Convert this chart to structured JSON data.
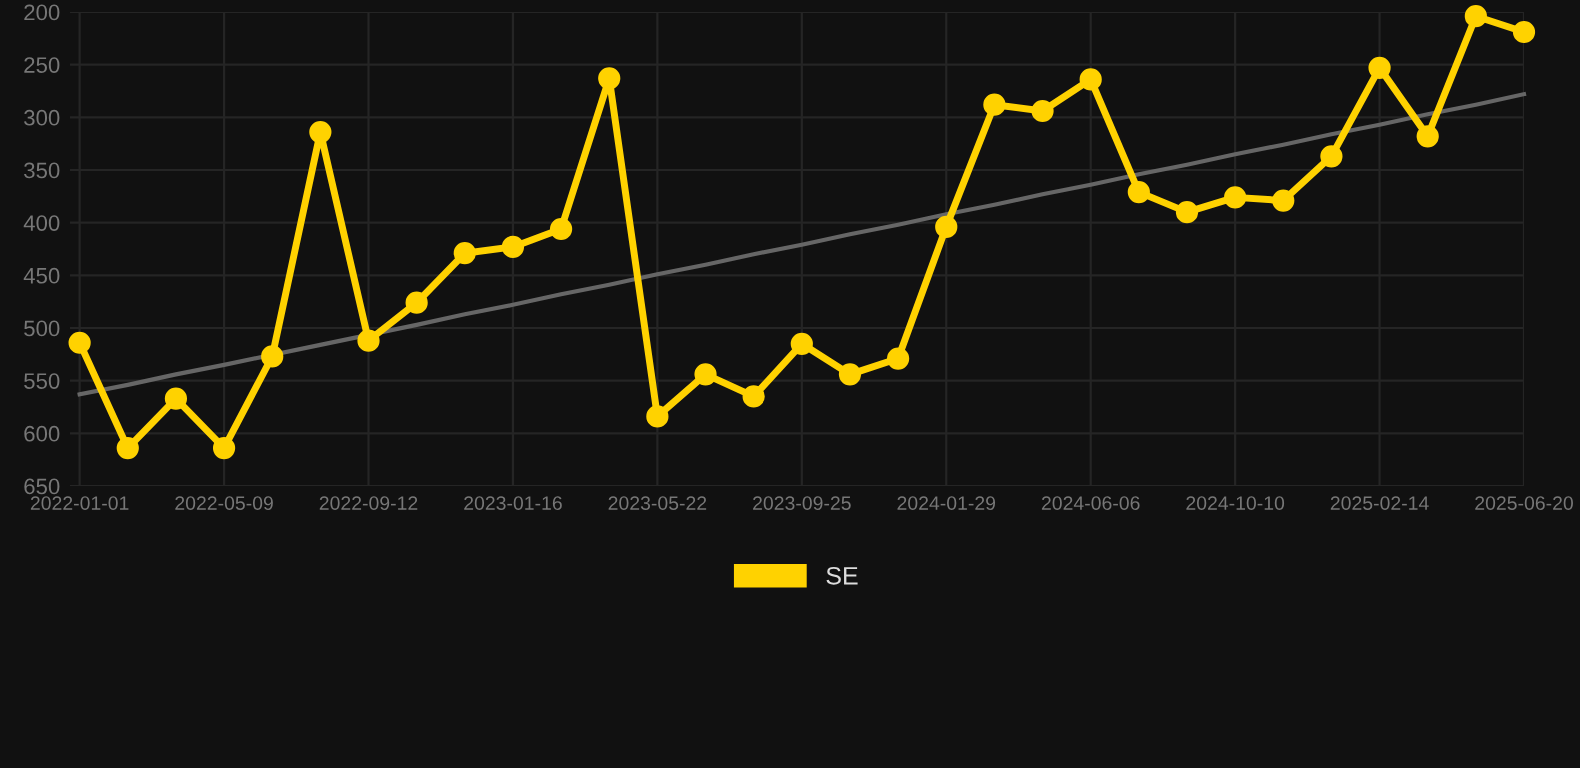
{
  "chart_data": {
    "type": "line",
    "categories": [
      "2022-01-01",
      null,
      null,
      "2022-05-09",
      null,
      null,
      "2022-09-12",
      null,
      null,
      "2023-01-16",
      null,
      null,
      "2023-05-22",
      null,
      null,
      "2023-09-25",
      null,
      null,
      "2024-01-29",
      null,
      null,
      "2024-06-06",
      null,
      null,
      "2024-10-10",
      null,
      null,
      "2025-02-14",
      null,
      null,
      "2025-06-20"
    ],
    "series": [
      {
        "name": "SE",
        "color": "#ffd200",
        "marker": "circle",
        "values": [
          514,
          614,
          567,
          614,
          527,
          314,
          512,
          476,
          429,
          423,
          406,
          263,
          584,
          544,
          565,
          515,
          544,
          529,
          404,
          288,
          294,
          264,
          371,
          390,
          376,
          379,
          337,
          253,
          318,
          204,
          219
        ]
      },
      {
        "color": "#666666",
        "marker": "none",
        "values": [
          563,
          554,
          544,
          535,
          null,
          516,
          null,
          497,
          487,
          478,
          468,
          459,
          449,
          440,
          430,
          421,
          411,
          402,
          392,
          383,
          373,
          364,
          354,
          345,
          335,
          326,
          316,
          307,
          297,
          288,
          278
        ]
      }
    ],
    "ylim": [
      650,
      200
    ],
    "yticks": [
      200,
      250,
      300,
      350,
      400,
      450,
      500,
      550,
      600,
      650
    ],
    "grid": true,
    "legend": "bottom",
    "line_style": "solid"
  }
}
